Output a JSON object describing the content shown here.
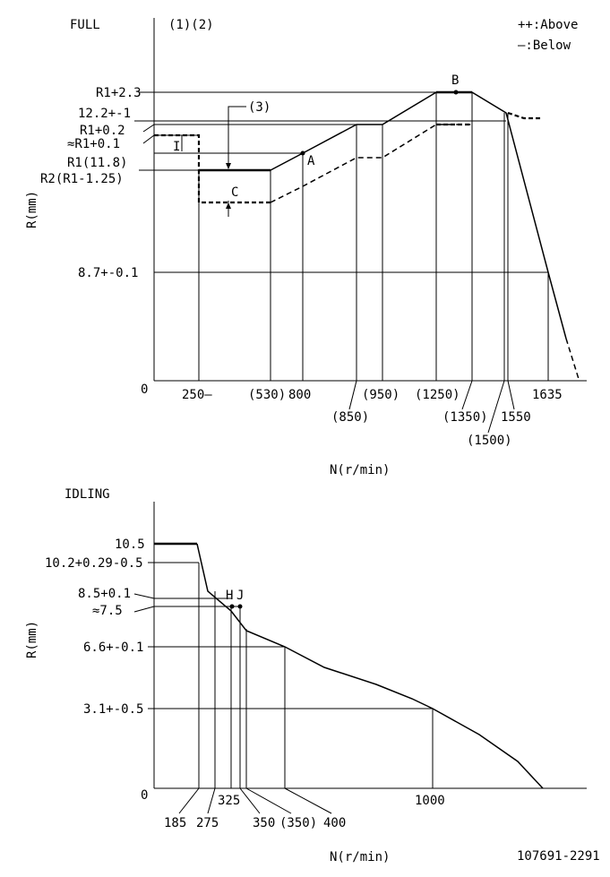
{
  "header": {
    "full_label": "FULL",
    "notes_label": "(1)(2)",
    "legend_above": "++:Above",
    "legend_below": "—:Below"
  },
  "footer": {
    "drawing_number": "107691-2291"
  },
  "chart_data": [
    {
      "type": "line",
      "title": "FULL",
      "xlabel": "N(r/min)",
      "ylabel": "R(mm)",
      "origin_label": "0",
      "y_tick_labels": [
        "R1+2.3",
        "12.2+-1",
        "R1+0.2",
        "≈R1+0.1",
        "R1(11.8)",
        "R2(R1-1.25)",
        "8.7+-0.1"
      ],
      "x_tick_labels": [
        "250—",
        "(530)",
        "800",
        "(850)",
        "(950)",
        "(1250)",
        "(1350)",
        "1550",
        "(1500)",
        "1635"
      ],
      "point_labels": [
        "A",
        "B",
        "C",
        "I",
        "(3)"
      ],
      "series": [
        {
          "name": "R1",
          "style": "solid",
          "points": [
            [
              250,
              11.8
            ],
            [
              530,
              11.8
            ],
            [
              800,
              12.0
            ],
            [
              850,
              12.2
            ],
            [
              950,
              12.2
            ],
            [
              1250,
              14.1
            ],
            [
              1350,
              14.1
            ],
            [
              1500,
              12.4
            ],
            [
              1635,
              8.7
            ],
            [
              1700,
              6.8
            ]
          ]
        },
        {
          "name": "R2",
          "style": "dashed",
          "points": [
            [
              250,
              10.55
            ],
            [
              530,
              10.55
            ],
            [
              800,
              11.0
            ],
            [
              850,
              11.4
            ],
            [
              950,
              11.4
            ],
            [
              1250,
              12.8
            ],
            [
              1350,
              12.8
            ]
          ]
        }
      ]
    },
    {
      "type": "line",
      "title": "IDLING",
      "xlabel": "N(r/min)",
      "ylabel": "R(mm)",
      "origin_label": "0",
      "y_tick_labels": [
        "10.5",
        "10.2+0.29-0.5",
        "8.5+0.1",
        "≈7.5",
        "6.6+-0.1",
        "3.1+-0.5"
      ],
      "x_tick_labels": [
        "185",
        "275",
        "325",
        "350",
        "(350)",
        "400",
        "1000"
      ],
      "point_labels": [
        "H",
        "J"
      ],
      "series": [
        {
          "points": [
            [
              0,
              10.5
            ],
            [
              185,
              10.5
            ],
            [
              215,
              8.5
            ],
            [
              325,
              7.3
            ],
            [
              350,
              6.9
            ],
            [
              400,
              6.6
            ],
            [
              600,
              5.2
            ],
            [
              800,
              4.3
            ],
            [
              1000,
              3.1
            ],
            [
              1200,
              1.6
            ],
            [
              1350,
              0
            ]
          ]
        }
      ]
    }
  ]
}
